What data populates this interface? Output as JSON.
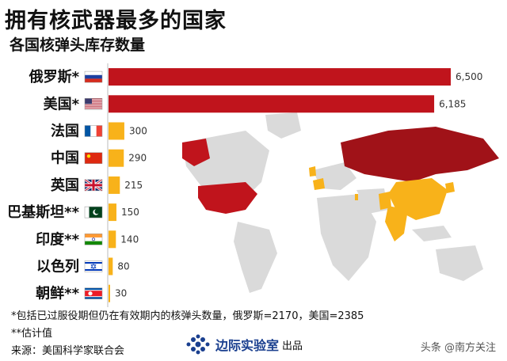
{
  "header": {
    "title": "拥有核武器最多的国家",
    "subtitle": "各国核弹头库存数量"
  },
  "colors": {
    "top_two": "#c0141c",
    "others": "#f8b21a",
    "map_land": "#dadada"
  },
  "chart_data": {
    "type": "bar",
    "orientation": "horizontal",
    "title": "拥有核武器最多的国家",
    "subtitle": "各国核弹头库存数量",
    "xlim": [
      0,
      6500
    ],
    "grid": false,
    "categories": [
      "俄罗斯*",
      "美国*",
      "法国",
      "中国",
      "英国",
      "巴基斯坦**",
      "印度**",
      "以色列",
      "朝鲜**"
    ],
    "values": [
      6500,
      6185,
      300,
      290,
      215,
      150,
      140,
      80,
      30
    ],
    "value_labels": [
      "6,500",
      "6,185",
      "300",
      "290",
      "215",
      "150",
      "140",
      "80",
      "30"
    ],
    "flag_icons": [
      "flag-russia-icon",
      "flag-usa-icon",
      "flag-france-icon",
      "flag-china-icon",
      "flag-uk-icon",
      "flag-pakistan-icon",
      "flag-india-icon",
      "flag-israel-icon",
      "flag-north-korea-icon"
    ]
  },
  "footnotes": {
    "note1": "*包括已过服役期但仍在有效期内的核弹头数量，俄罗斯=2170，美国=2385",
    "note2": "**估计值",
    "source": "来源：美国科学家联合会"
  },
  "brand": {
    "name": "边际实验室",
    "suffix": "出品"
  },
  "watermark": "头条 @南方关注"
}
